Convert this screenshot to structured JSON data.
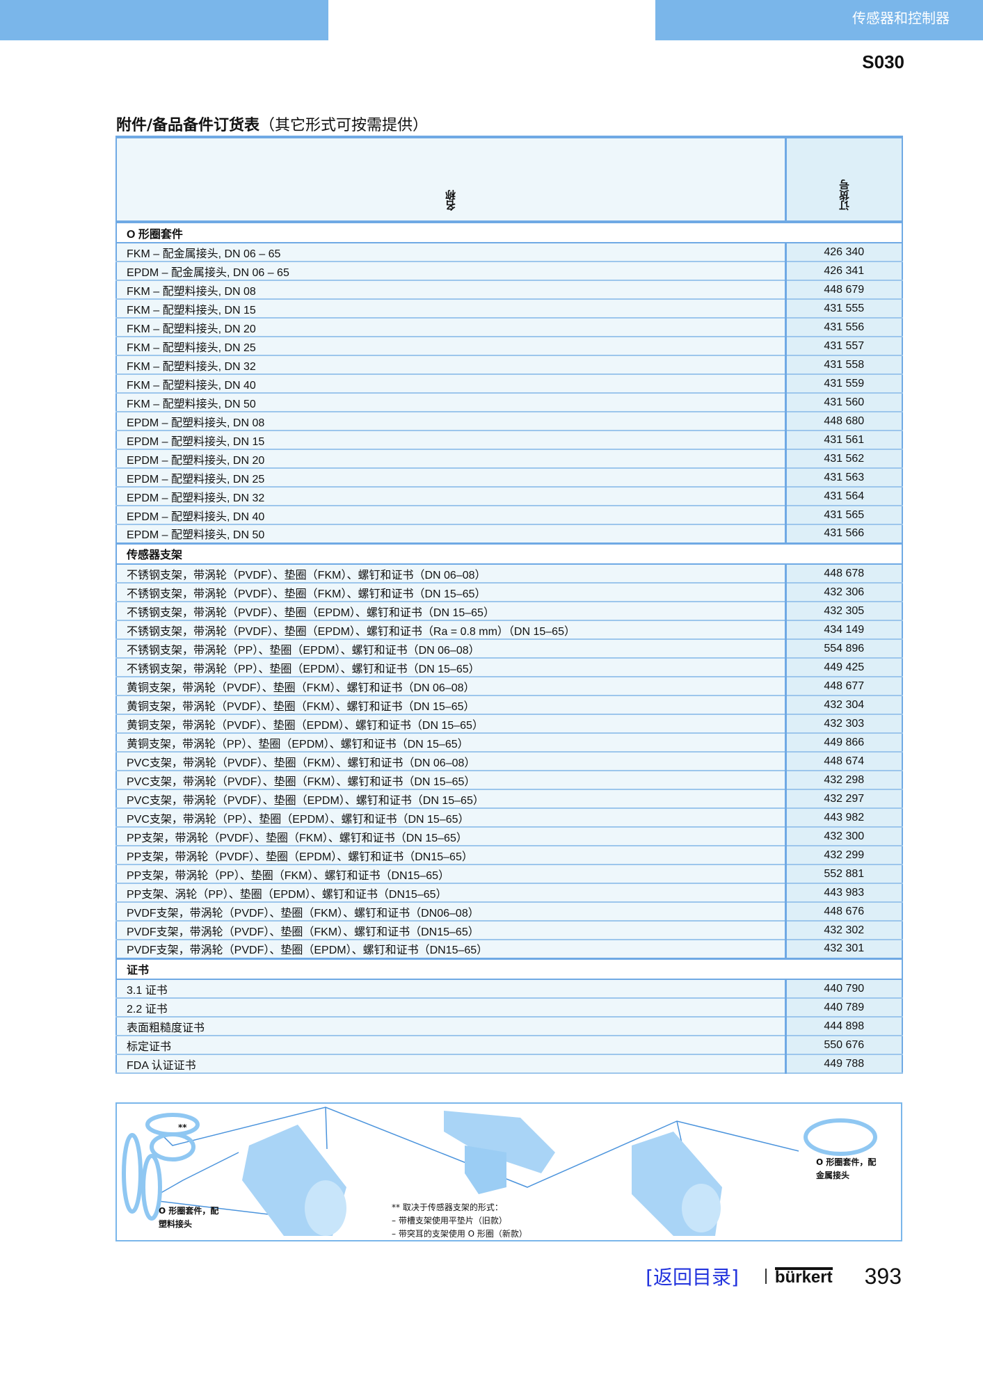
{
  "header": {
    "category": "传感器和控制器",
    "code": "S030"
  },
  "title": {
    "main": "附件/备品备件订货表",
    "sub": "（其它形式可按需提供）"
  },
  "table": {
    "columns": [
      "名称",
      "订货号"
    ],
    "sections": [
      {
        "title": "O 形圈套件",
        "rows": [
          [
            "FKM – 配金属接头, DN 06 – 65",
            "426 340"
          ],
          [
            "EPDM – 配金属接头, DN 06 – 65",
            "426 341"
          ],
          [
            "FKM – 配塑料接头, DN 08",
            "448 679"
          ],
          [
            "FKM – 配塑料接头, DN 15",
            "431 555"
          ],
          [
            "FKM – 配塑料接头, DN 20",
            "431 556"
          ],
          [
            "FKM – 配塑料接头, DN 25",
            "431 557"
          ],
          [
            "FKM – 配塑料接头, DN 32",
            "431 558"
          ],
          [
            "FKM – 配塑料接头, DN 40",
            "431 559"
          ],
          [
            "FKM – 配塑料接头, DN 50",
            "431 560"
          ],
          [
            "EPDM – 配塑料接头, DN 08",
            "448 680"
          ],
          [
            "EPDM – 配塑料接头, DN 15",
            "431 561"
          ],
          [
            "EPDM – 配塑料接头, DN 20",
            "431 562"
          ],
          [
            "EPDM – 配塑料接头, DN 25",
            "431 563"
          ],
          [
            "EPDM – 配塑料接头, DN 32",
            "431 564"
          ],
          [
            "EPDM – 配塑料接头, DN 40",
            "431 565"
          ],
          [
            "EPDM – 配塑料接头, DN 50",
            "431 566"
          ]
        ]
      },
      {
        "title": "传感器支架",
        "rows": [
          [
            "不锈钢支架，带涡轮（PVDF）、垫圈（FKM）、螺钉和证书（DN 06–08）",
            "448 678"
          ],
          [
            "不锈钢支架，带涡轮（PVDF）、垫圈（FKM）、螺钉和证书（DN 15–65）",
            "432 306"
          ],
          [
            "不锈钢支架，带涡轮（PVDF）、垫圈（EPDM）、螺钉和证书（DN 15–65）",
            "432 305"
          ],
          [
            "不锈钢支架，带涡轮（PVDF）、垫圈（EPDM）、螺钉和证书（Ra = 0.8 mm）（DN 15–65）",
            "434 149"
          ],
          [
            "不锈钢支架，带涡轮（PP）、垫圈（EPDM）、螺钉和证书（DN 06–08）",
            "554 896"
          ],
          [
            "不锈钢支架，带涡轮（PP）、垫圈（EPDM）、螺钉和证书（DN 15–65）",
            "449 425"
          ],
          [
            "黄铜支架，带涡轮（PVDF）、垫圈（FKM）、螺钉和证书（DN 06–08）",
            "448 677"
          ],
          [
            "黄铜支架，带涡轮（PVDF）、垫圈（FKM）、螺钉和证书（DN 15–65）",
            "432 304"
          ],
          [
            "黄铜支架，带涡轮（PVDF）、垫圈（EPDM）、螺钉和证书（DN 15–65）",
            "432 303"
          ],
          [
            "黄铜支架，带涡轮（PP）、垫圈（EPDM）、螺钉和证书（DN 15–65）",
            "449 866"
          ],
          [
            "PVC支架，带涡轮（PVDF）、垫圈（FKM）、螺钉和证书（DN 06–08）",
            "448 674"
          ],
          [
            "PVC支架，带涡轮（PVDF）、垫圈（FKM）、螺钉和证书（DN 15–65）",
            "432 298"
          ],
          [
            "PVC支架，带涡轮（PVDF）、垫圈（EPDM）、螺钉和证书（DN 15–65）",
            "432 297"
          ],
          [
            "PVC支架，带涡轮（PP）、垫圈（EPDM）、螺钉和证书（DN 15–65）",
            "443 982"
          ],
          [
            "PP支架，带涡轮（PVDF）、垫圈（FKM）、螺钉和证书（DN 15–65）",
            "432 300"
          ],
          [
            "PP支架，带涡轮（PVDF）、垫圈（EPDM）、螺钉和证书（DN15–65）",
            "432 299"
          ],
          [
            "PP支架，带涡轮（PP）、垫圈（FKM）、螺钉和证书（DN15–65）",
            "552 881"
          ],
          [
            "PP支架、涡轮（PP）、垫圈（EPDM）、螺钉和证书（DN15–65）",
            "443 983"
          ],
          [
            "PVDF支架，带涡轮（PVDF）、垫圈（FKM）、螺钉和证书（DN06–08）",
            "448 676"
          ],
          [
            "PVDF支架，带涡轮（PVDF）、垫圈（FKM）、螺钉和证书（DN15–65）",
            "432 302"
          ],
          [
            "PVDF支架，带涡轮（PVDF）、垫圈（EPDM）、螺钉和证书（DN15–65）",
            "432 301"
          ]
        ]
      },
      {
        "title": "证书",
        "rows": [
          [
            "3.1 证书",
            "440 790"
          ],
          [
            "2.2 证书",
            "440 789"
          ],
          [
            "表面粗糙度证书",
            "444 898"
          ],
          [
            "标定证书",
            "550 676"
          ],
          [
            "FDA 认证证书",
            "449 788"
          ]
        ]
      }
    ]
  },
  "diagram": {
    "label_plastic": [
      "O 形圈套件，配",
      "塑料接头"
    ],
    "label_metal": [
      "O 形圈套件，配",
      "金属接头"
    ],
    "marker": "**",
    "note": [
      "** 取决于传感器支架的形式：",
      "– 带槽支架使用平垫片（旧款）",
      "– 带突耳的支架使用 O 形圈（新款）"
    ],
    "color": "#8fc7f2"
  },
  "footer": {
    "back_link": "[返回目录]",
    "brand": "bürkert",
    "page": "393"
  }
}
